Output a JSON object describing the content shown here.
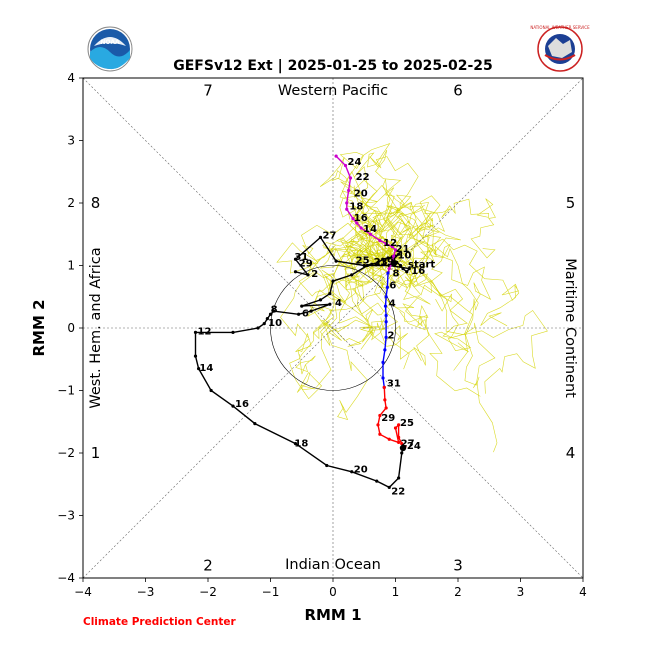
{
  "figure": {
    "title": "GEFSv12 Ext | 2025-01-25 to 2025-02-25",
    "credit": "Climate Prediction Center",
    "logo_left_text": "NOAA",
    "logo_right_text": "NATIONAL WEATHER SERVICE"
  },
  "chart_data": {
    "type": "line",
    "xlabel": "RMM 1",
    "ylabel": "RMM 2",
    "xlim": [
      -4,
      4
    ],
    "ylim": [
      -4,
      4
    ],
    "xticks": [
      "−4",
      "−3",
      "−2",
      "−1",
      "0",
      "1",
      "2",
      "3",
      "4"
    ],
    "yticks": [
      "−4",
      "−3",
      "−2",
      "−1",
      "0",
      "1",
      "2",
      "3",
      "4"
    ],
    "grid": "dashed center axes and diagonals",
    "unit_circle_radius": 1,
    "regions": {
      "top": "Western Pacific",
      "bottom": "Indian Ocean",
      "left": "West. Hem. and Africa",
      "right": "Maritime Continent"
    },
    "phases": [
      {
        "label": "1",
        "x": -3.8,
        "y": -2.0
      },
      {
        "label": "2",
        "x": -2.0,
        "y": -3.8
      },
      {
        "label": "3",
        "x": 2.0,
        "y": -3.8
      },
      {
        "label": "4",
        "x": 3.8,
        "y": -2.0
      },
      {
        "label": "5",
        "x": 3.8,
        "y": 2.0
      },
      {
        "label": "6",
        "x": 2.0,
        "y": 3.8
      },
      {
        "label": "7",
        "x": -2.0,
        "y": 3.8
      },
      {
        "label": "8",
        "x": -3.8,
        "y": 2.0
      }
    ],
    "series": [
      {
        "color": "#000000",
        "points": [
          [
            -0.6,
            0.9
          ],
          [
            -0.4,
            0.85
          ],
          [
            -0.6,
            1.1
          ],
          [
            -0.2,
            1.45
          ],
          [
            0.05,
            1.07
          ],
          [
            0.5,
            1.0
          ],
          [
            0.62,
            1.02
          ],
          [
            0.72,
            1.05
          ],
          [
            0.8,
            1.1
          ],
          [
            0.88,
            1.12
          ],
          [
            0.95,
            1.14
          ],
          [
            1.0,
            1.15
          ],
          [
            1.05,
            1.18
          ],
          [
            0.97,
            1.1
          ],
          [
            1.02,
            1.05
          ],
          [
            1.08,
            1.0
          ],
          [
            1.12,
            0.95
          ],
          [
            1.18,
            0.9
          ],
          [
            1.22,
            0.95
          ],
          [
            0.9,
            1.0
          ],
          [
            0.55,
            1.0
          ],
          [
            0.3,
            0.85
          ],
          [
            0.0,
            0.75
          ],
          [
            -0.05,
            0.55
          ],
          [
            -0.2,
            0.45
          ],
          [
            -0.5,
            0.35
          ],
          [
            -0.05,
            0.38
          ],
          [
            -0.35,
            0.27
          ],
          [
            -0.55,
            0.22
          ],
          [
            -0.95,
            0.27
          ],
          [
            -1.0,
            0.22
          ],
          [
            -1.05,
            0.15
          ],
          [
            -1.1,
            0.07
          ],
          [
            -1.2,
            0.0
          ],
          [
            -1.6,
            -0.07
          ],
          [
            -2.2,
            -0.07
          ],
          [
            -2.2,
            -0.45
          ],
          [
            -2.15,
            -0.65
          ],
          [
            -1.95,
            -1.0
          ],
          [
            -1.6,
            -1.25
          ],
          [
            -1.25,
            -1.53
          ],
          [
            -0.6,
            -1.85
          ],
          [
            -0.1,
            -2.2
          ],
          [
            0.3,
            -2.3
          ],
          [
            0.7,
            -2.45
          ],
          [
            0.9,
            -2.55
          ],
          [
            1.05,
            -2.4
          ],
          [
            1.1,
            -2.0
          ],
          [
            1.12,
            -1.9
          ]
        ]
      },
      {
        "color": "#cc00cc",
        "points": [
          [
            0.05,
            2.75
          ],
          [
            0.2,
            2.6
          ],
          [
            0.28,
            2.4
          ],
          [
            0.25,
            2.2
          ],
          [
            0.22,
            2.0
          ],
          [
            0.22,
            1.9
          ],
          [
            0.32,
            1.75
          ],
          [
            0.38,
            1.68
          ],
          [
            0.45,
            1.6
          ],
          [
            0.6,
            1.5
          ],
          [
            0.75,
            1.4
          ],
          [
            0.85,
            1.35
          ],
          [
            0.95,
            1.3
          ],
          [
            1.0,
            1.25
          ],
          [
            0.97,
            1.15
          ],
          [
            0.95,
            1.07
          ],
          [
            0.93,
            1.02
          ],
          [
            0.9,
            0.95
          ],
          [
            0.88,
            0.88
          ]
        ]
      },
      {
        "color": "#0000ff",
        "points": [
          [
            0.88,
            0.88
          ],
          [
            0.87,
            0.65
          ],
          [
            0.85,
            0.5
          ],
          [
            0.84,
            0.35
          ],
          [
            0.85,
            0.2
          ],
          [
            0.85,
            0.1
          ],
          [
            0.85,
            -0.15
          ],
          [
            0.83,
            -0.35
          ],
          [
            0.8,
            -0.55
          ],
          [
            0.8,
            -0.8
          ],
          [
            0.82,
            -0.95
          ]
        ]
      },
      {
        "color": "#ff0000",
        "points": [
          [
            0.82,
            -0.95
          ],
          [
            0.83,
            -1.15
          ],
          [
            0.85,
            -1.28
          ],
          [
            0.75,
            -1.4
          ],
          [
            0.72,
            -1.55
          ],
          [
            0.75,
            -1.7
          ],
          [
            0.9,
            -1.78
          ],
          [
            1.05,
            -1.83
          ],
          [
            1.0,
            -1.6
          ],
          [
            1.05,
            -1.55
          ],
          [
            1.05,
            -1.75
          ],
          [
            1.1,
            -1.85
          ],
          [
            1.15,
            -1.9
          ],
          [
            1.12,
            -1.92
          ]
        ]
      }
    ],
    "start": {
      "label": "start",
      "x": 1.2,
      "y": 1.1
    },
    "day_labels": [
      {
        "text": "24",
        "x": 0.2,
        "y": 2.67,
        "color": "#000000"
      },
      {
        "text": "22",
        "x": 0.33,
        "y": 2.43,
        "color": "#000000"
      },
      {
        "text": "20",
        "x": 0.3,
        "y": 2.17,
        "color": "#000000"
      },
      {
        "text": "18",
        "x": 0.23,
        "y": 1.96,
        "color": "#000000"
      },
      {
        "text": "16",
        "x": 0.3,
        "y": 1.78,
        "color": "#000000"
      },
      {
        "text": "14",
        "x": 0.45,
        "y": 1.6,
        "color": "#000000"
      },
      {
        "text": "12",
        "x": 0.77,
        "y": 1.38,
        "color": "#000000"
      },
      {
        "text": "21",
        "x": 0.97,
        "y": 1.28,
        "color": "#000000"
      },
      {
        "text": "10",
        "x": 1.0,
        "y": 1.18,
        "color": "#000000"
      },
      {
        "text": "16",
        "x": 1.22,
        "y": 0.93,
        "color": "#000000"
      },
      {
        "text": "8",
        "x": 0.92,
        "y": 0.89,
        "color": "#000000"
      },
      {
        "text": "6",
        "x": 0.87,
        "y": 0.7,
        "color": "#000000"
      },
      {
        "text": "4",
        "x": 0.86,
        "y": 0.41,
        "color": "#000000"
      },
      {
        "text": "2",
        "x": 0.84,
        "y": -0.1,
        "color": "#000000"
      },
      {
        "text": "31",
        "x": 0.83,
        "y": -0.87,
        "color": "#000000"
      },
      {
        "text": "25",
        "x": 1.04,
        "y": -1.5,
        "color": "#000000"
      },
      {
        "text": "29",
        "x": 0.74,
        "y": -1.42,
        "color": "#000000"
      },
      {
        "text": "27",
        "x": 1.05,
        "y": -1.83,
        "color": "#000000"
      },
      {
        "text": "24",
        "x": 1.15,
        "y": -1.87,
        "color": "#000000"
      },
      {
        "text": "22",
        "x": 0.9,
        "y": -2.6,
        "color": "#000000"
      },
      {
        "text": "20",
        "x": 0.3,
        "y": -2.25,
        "color": "#000000"
      },
      {
        "text": "18",
        "x": -0.65,
        "y": -1.83,
        "color": "#000000"
      },
      {
        "text": "16",
        "x": -1.6,
        "y": -1.2,
        "color": "#000000"
      },
      {
        "text": "14",
        "x": -2.17,
        "y": -0.62,
        "color": "#000000"
      },
      {
        "text": "12",
        "x": -2.2,
        "y": -0.04,
        "color": "#000000"
      },
      {
        "text": "10",
        "x": -1.07,
        "y": 0.1,
        "color": "#000000"
      },
      {
        "text": "8",
        "x": -1.03,
        "y": 0.31,
        "color": "#000000"
      },
      {
        "text": "6",
        "x": -0.53,
        "y": 0.25,
        "color": "#000000"
      },
      {
        "text": "4",
        "x": 0.0,
        "y": 0.42,
        "color": "#000000"
      },
      {
        "text": "2",
        "x": -0.38,
        "y": 0.88,
        "color": "#000000"
      },
      {
        "text": "31",
        "x": -0.65,
        "y": 1.15,
        "color": "#000000"
      },
      {
        "text": "29",
        "x": -0.58,
        "y": 1.05,
        "color": "#000000"
      },
      {
        "text": "27",
        "x": -0.2,
        "y": 1.5,
        "color": "#000000"
      },
      {
        "text": "25",
        "x": 0.33,
        "y": 1.1,
        "color": "#000000"
      },
      {
        "text": "23",
        "x": 0.62,
        "y": 1.07,
        "color": "#000000"
      },
      {
        "text": "19",
        "x": 0.72,
        "y": 1.07,
        "color": "#000000"
      }
    ],
    "ensemble_color": "#d4d400"
  }
}
